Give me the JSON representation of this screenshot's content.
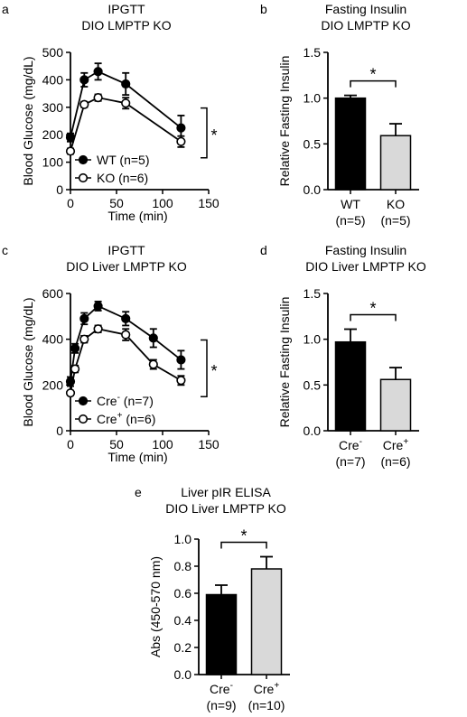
{
  "chart_data": [
    {
      "id": "a",
      "type": "line",
      "panel_letter": "a",
      "title": "IPGTT",
      "subtitle": "DIO LMPTP KO",
      "xlabel": "Time (min)",
      "ylabel": "Blood Glucose (mg/dL)",
      "xlim": [
        0,
        150
      ],
      "ylim": [
        0,
        500
      ],
      "xticks": [
        0,
        50,
        100,
        150
      ],
      "yticks": [
        0,
        100,
        200,
        300,
        400,
        500
      ],
      "grid": false,
      "legend_position": "bottom-left",
      "significance": "*",
      "series": [
        {
          "name": "WT (n=5)",
          "marker": "filled",
          "x": [
            0,
            15,
            30,
            60,
            120
          ],
          "y": [
            190,
            400,
            430,
            385,
            225
          ],
          "err": [
            15,
            25,
            30,
            40,
            45
          ]
        },
        {
          "name": "KO (n=6)",
          "marker": "open",
          "x": [
            0,
            15,
            30,
            60,
            120
          ],
          "y": [
            140,
            310,
            335,
            315,
            175
          ],
          "err": [
            10,
            10,
            12,
            20,
            20
          ]
        }
      ]
    },
    {
      "id": "b",
      "type": "bar",
      "panel_letter": "b",
      "title": "Fasting Insulin",
      "subtitle": "DIO LMPTP KO",
      "ylabel": "Relative Fasting Insulin",
      "ylim": [
        0,
        1.5
      ],
      "yticks": [
        "0.0",
        "0.5",
        "1.0",
        "1.5"
      ],
      "categories": [
        "WT",
        "KO"
      ],
      "category_sub": [
        "",
        ""
      ],
      "category_n": [
        "(n=5)",
        "(n=5)"
      ],
      "values": [
        1.0,
        0.59
      ],
      "errors": [
        0.03,
        0.13
      ],
      "bar_colors": [
        "#000000",
        "#d9d9d9"
      ],
      "significance": "*"
    },
    {
      "id": "c",
      "type": "line",
      "panel_letter": "c",
      "title": "IPGTT",
      "subtitle": "DIO Liver LMPTP KO",
      "xlabel": "Time (min)",
      "ylabel": "Blood Glucose (mg/dL)",
      "xlim": [
        0,
        150
      ],
      "ylim": [
        0,
        600
      ],
      "xticks": [
        0,
        50,
        100,
        150
      ],
      "yticks": [
        0,
        200,
        400,
        600
      ],
      "grid": false,
      "legend_position": "bottom-left",
      "significance": "*",
      "series": [
        {
          "name": "Cre",
          "name_sup": "-",
          "name_suffix": " (n=7)",
          "marker": "filled",
          "x": [
            0,
            5,
            15,
            30,
            60,
            90,
            120
          ],
          "y": [
            215,
            360,
            490,
            545,
            490,
            405,
            310
          ],
          "err": [
            20,
            20,
            25,
            20,
            30,
            40,
            40
          ]
        },
        {
          "name": "Cre",
          "name_sup": "+",
          "name_suffix": " (n=6)",
          "marker": "open",
          "x": [
            0,
            5,
            15,
            30,
            60,
            90,
            120
          ],
          "y": [
            165,
            270,
            400,
            445,
            420,
            290,
            220
          ],
          "err": [
            10,
            15,
            15,
            15,
            25,
            20,
            20
          ]
        }
      ]
    },
    {
      "id": "d",
      "type": "bar",
      "panel_letter": "d",
      "title": "Fasting Insulin",
      "subtitle": "DIO Liver LMPTP KO",
      "ylabel": "Relative Fasting Insulin",
      "ylim": [
        0,
        1.5
      ],
      "yticks": [
        "0.0",
        "0.5",
        "1.0",
        "1.5"
      ],
      "categories": [
        "Cre",
        "Cre"
      ],
      "category_sub": [
        "-",
        "+"
      ],
      "category_n": [
        "(n=7)",
        "(n=6)"
      ],
      "values": [
        0.97,
        0.56
      ],
      "errors": [
        0.14,
        0.13
      ],
      "bar_colors": [
        "#000000",
        "#d9d9d9"
      ],
      "significance": "*"
    },
    {
      "id": "e",
      "type": "bar",
      "panel_letter": "e",
      "title": "Liver pIR ELISA",
      "subtitle": "DIO Liver LMPTP KO",
      "ylabel": "Abs (450-570 nm)",
      "ylim": [
        0,
        1.0
      ],
      "yticks": [
        "0.0",
        "0.2",
        "0.4",
        "0.6",
        "0.8",
        "1.0"
      ],
      "categories": [
        "Cre",
        "Cre"
      ],
      "category_sub": [
        "-",
        "+"
      ],
      "category_n": [
        "(n=9)",
        "(n=10)"
      ],
      "values": [
        0.59,
        0.78
      ],
      "errors": [
        0.07,
        0.09
      ],
      "bar_colors": [
        "#000000",
        "#d9d9d9"
      ],
      "significance": "*"
    }
  ]
}
